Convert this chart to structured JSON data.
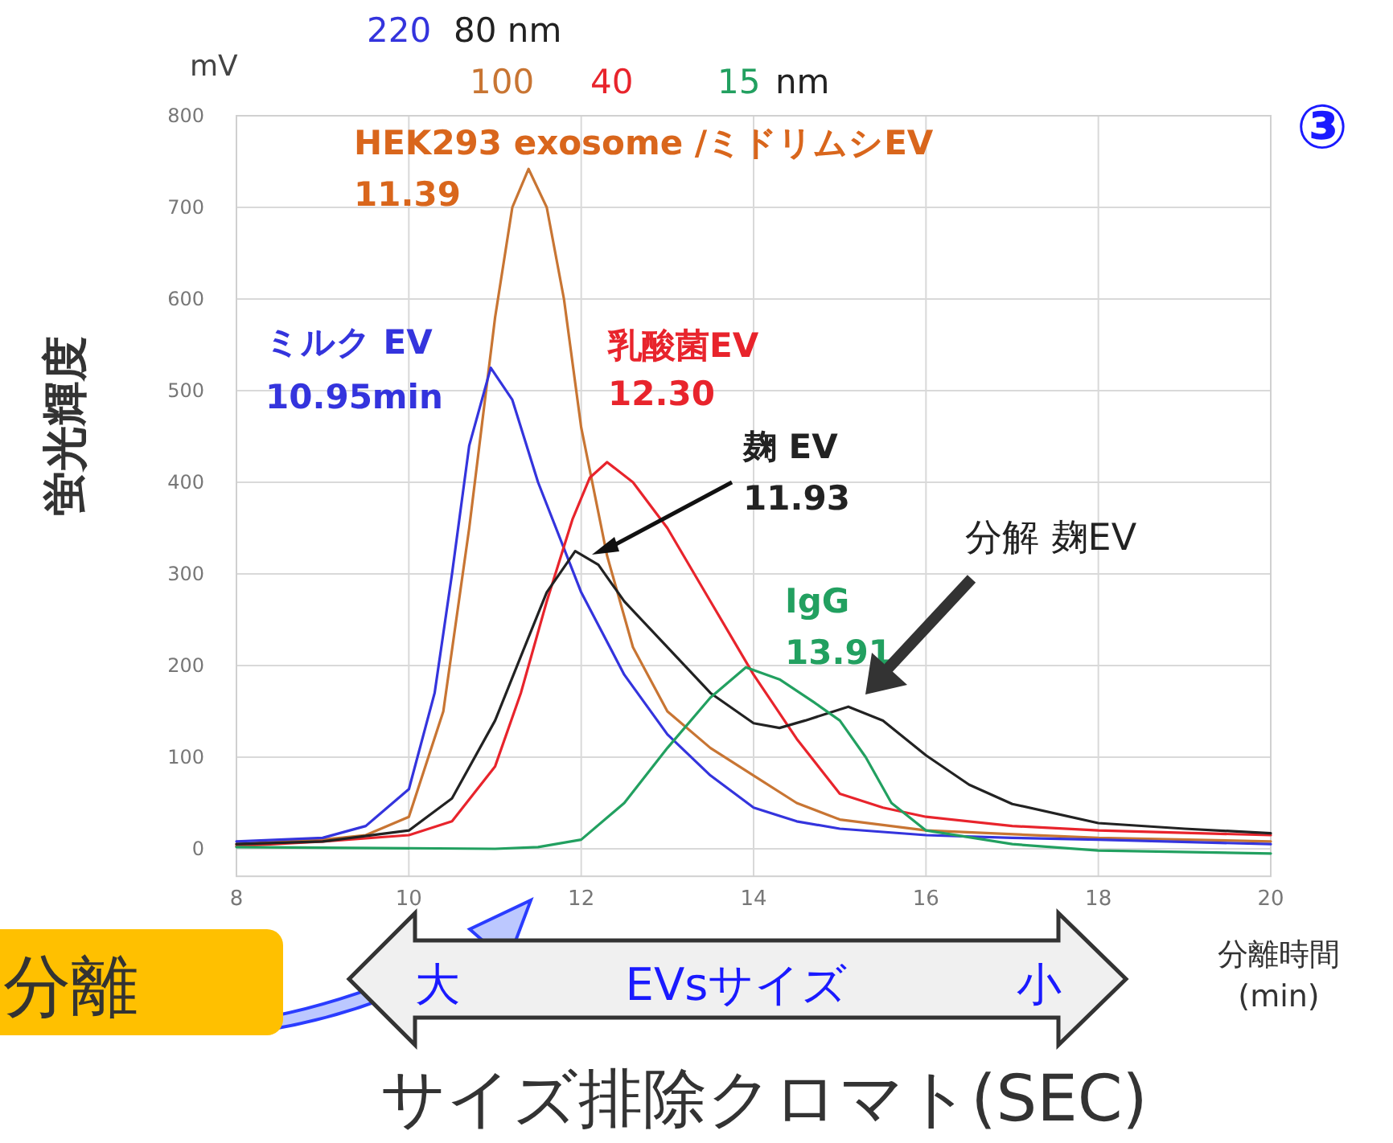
{
  "chart_data": {
    "type": "line",
    "title": "サイズ排除クロマト(SEC)",
    "xlabel": "分離時間 (min)",
    "ylabel": "蛍光輝度",
    "xlim": [
      8,
      20
    ],
    "xticks": [
      8,
      10,
      12,
      14,
      16,
      18,
      20
    ],
    "ylim": [
      -30,
      800
    ],
    "yticks": [
      0,
      100,
      200,
      300,
      400,
      500,
      600,
      700,
      800
    ],
    "grid": true,
    "legend": false,
    "marker": "none",
    "line_style": "solid",
    "series": [
      {
        "name": "HEK293 exosome /ミドリムシEV",
        "color": "#c87533",
        "x": [
          8,
          9,
          9.5,
          10,
          10.4,
          10.7,
          11,
          11.2,
          11.39,
          11.6,
          11.8,
          12,
          12.3,
          12.6,
          13,
          13.5,
          14,
          14.5,
          15,
          16,
          18,
          20
        ],
        "values": [
          5,
          10,
          15,
          35,
          150,
          350,
          580,
          700,
          742,
          700,
          600,
          460,
          320,
          220,
          150,
          110,
          80,
          50,
          32,
          20,
          12,
          8
        ]
      },
      {
        "name": "ミルク EV",
        "color": "#3434dd",
        "x": [
          8,
          9,
          9.5,
          10,
          10.3,
          10.5,
          10.7,
          10.95,
          11.2,
          11.5,
          12,
          12.5,
          13,
          13.5,
          14,
          14.5,
          15,
          16,
          17,
          18,
          20
        ],
        "values": [
          8,
          12,
          25,
          65,
          170,
          300,
          440,
          525,
          490,
          400,
          280,
          190,
          125,
          80,
          45,
          30,
          22,
          15,
          12,
          10,
          5
        ]
      },
      {
        "name": "乳酸菌EV",
        "color": "#e8242c",
        "x": [
          8,
          9,
          10,
          10.5,
          11,
          11.3,
          11.6,
          11.9,
          12.1,
          12.3,
          12.6,
          13,
          13.5,
          14,
          14.5,
          15,
          15.5,
          16,
          17,
          18,
          20
        ],
        "values": [
          3,
          8,
          15,
          30,
          90,
          170,
          270,
          360,
          405,
          422,
          400,
          350,
          270,
          190,
          120,
          60,
          45,
          35,
          25,
          20,
          15
        ]
      },
      {
        "name": "麹 EV",
        "color": "#222222",
        "x": [
          8,
          9,
          10,
          10.5,
          11,
          11.3,
          11.6,
          11.93,
          12.2,
          12.5,
          13,
          13.5,
          14,
          14.3,
          14.6,
          15.1,
          15.5,
          16,
          16.5,
          17,
          18,
          19,
          20
        ],
        "values": [
          5,
          8,
          20,
          55,
          140,
          210,
          280,
          325,
          310,
          270,
          220,
          170,
          137,
          132,
          140,
          155,
          140,
          102,
          70,
          49,
          28,
          22,
          17
        ]
      },
      {
        "name": "IgG",
        "color": "#22a060",
        "x": [
          8,
          11,
          11.5,
          12,
          12.5,
          13,
          13.5,
          13.91,
          14.3,
          14.7,
          15,
          15.3,
          15.6,
          16,
          17,
          18,
          20
        ],
        "values": [
          2,
          0,
          2,
          10,
          50,
          110,
          165,
          198,
          185,
          160,
          140,
          100,
          50,
          20,
          5,
          -2,
          -5
        ]
      }
    ],
    "annotations": [
      "11.39",
      "10.95min",
      "12.30",
      "11.93",
      "13.91",
      "分解 麹EV",
      "mV",
      "220",
      "80 nm",
      "100",
      "40",
      "15",
      "nm",
      "③",
      "分離",
      "大",
      "EVsサイズ",
      "小"
    ]
  }
}
